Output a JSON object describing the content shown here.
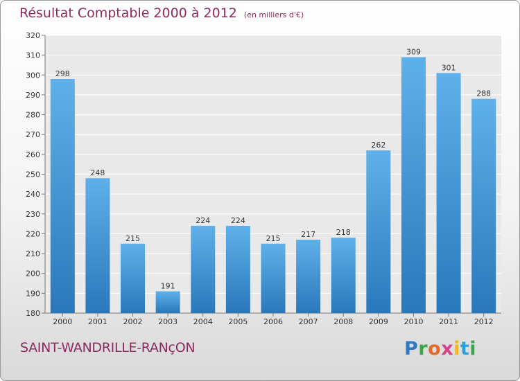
{
  "chart_data": {
    "type": "bar",
    "title": "Résultat Comptable 2000 à 2012",
    "unit": "(en milliers d'€)",
    "categories": [
      "2000",
      "2001",
      "2002",
      "2003",
      "2004",
      "2005",
      "2006",
      "2007",
      "2008",
      "2009",
      "2010",
      "2011",
      "2012"
    ],
    "values": [
      298,
      248,
      215,
      191,
      224,
      224,
      215,
      217,
      218,
      262,
      309,
      301,
      288
    ],
    "ylim": [
      180,
      320
    ],
    "ytick_step": 10,
    "grid": true,
    "bar_color": "#3d91d6"
  },
  "footer": {
    "commune": "SAINT-WANDRILLE-RANçON",
    "brand": "Proxiti"
  }
}
